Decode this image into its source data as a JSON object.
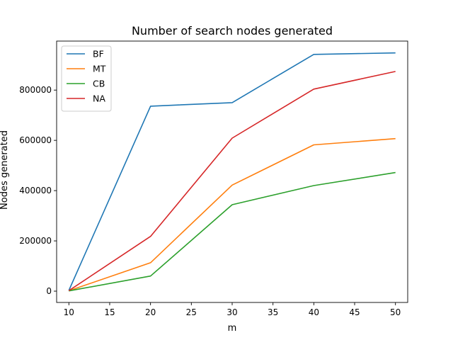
{
  "chart_data": {
    "type": "line",
    "title": "Number of search nodes generated",
    "xlabel": "m",
    "ylabel": "Nodes generated",
    "x": [
      10,
      20,
      30,
      40,
      50
    ],
    "xlim": [
      8.5,
      51.5
    ],
    "ylim": [
      -45000,
      995000
    ],
    "xticks": [
      10,
      15,
      20,
      25,
      30,
      35,
      40,
      45,
      50
    ],
    "yticks": [
      0,
      200000,
      400000,
      600000,
      800000
    ],
    "grid": false,
    "legend_position": "upper-left",
    "series": [
      {
        "name": "BF",
        "color": "#1f77b4",
        "values": [
          3000,
          736000,
          750000,
          942000,
          948000
        ]
      },
      {
        "name": "MT",
        "color": "#ff7f0e",
        "values": [
          1500,
          113000,
          422000,
          582000,
          607000
        ]
      },
      {
        "name": "CB",
        "color": "#2ca02c",
        "values": [
          1000,
          60000,
          344000,
          420000,
          472000
        ]
      },
      {
        "name": "NA",
        "color": "#d62728",
        "values": [
          2000,
          218000,
          609000,
          804000,
          874000
        ]
      }
    ]
  }
}
